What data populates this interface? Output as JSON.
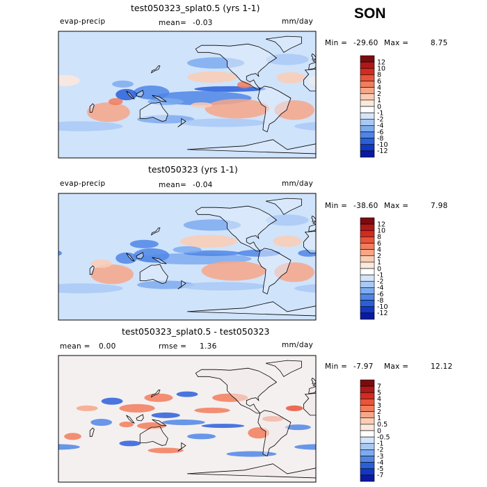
{
  "season": "SON",
  "colors": {
    "ocean_base": "#cfe3fb",
    "land": "#ffffff",
    "coast": "#000000"
  },
  "panels": [
    {
      "title": "test050323_splat0.5 (yrs 1-1)",
      "variable": "evap-precip",
      "mean_label": "mean=",
      "mean_value": "-0.03",
      "units": "mm/day",
      "min_label": "Min =",
      "min_value": "-29.60",
      "max_label": "Max =",
      "max_value": "8.75"
    },
    {
      "title": "test050323 (yrs 1-1)",
      "variable": "evap-precip",
      "mean_label": "mean=",
      "mean_value": "-0.04",
      "units": "mm/day",
      "min_label": "Min =",
      "min_value": "-38.60",
      "max_label": "Max =",
      "max_value": "7.98"
    },
    {
      "title": "test050323_splat0.5 - test050323",
      "mean_label": "mean =",
      "mean_value": "0.00",
      "rmse_label": "rmse =",
      "rmse_value": "1.36",
      "units": "mm/day",
      "min_label": "Min =",
      "min_value": "-7.97",
      "max_label": "Max =",
      "max_value": "12.12"
    }
  ],
  "chart_data": [
    {
      "type": "heatmap",
      "title": "test050323_splat0.5 (yrs 1-1)",
      "projection": "cylindrical-equidistant",
      "field": "evap-precip",
      "units": "mm/day",
      "mean": -0.03,
      "min": -29.6,
      "max": 8.75,
      "colorbar_levels": [
        "12",
        "10",
        "8",
        "6",
        "4",
        "2",
        "1",
        "0",
        "-1",
        "-2",
        "-4",
        "-6",
        "-8",
        "-10",
        "-12"
      ],
      "colorbar_colors": [
        "#7a0c10",
        "#b01818",
        "#d42a20",
        "#e8553a",
        "#f27d5c",
        "#f7a688",
        "#fbcdb4",
        "#fde8dc",
        "#ffffff",
        "#d4e5fb",
        "#a9c9f5",
        "#7eaaee",
        "#4f86e6",
        "#2a5fda",
        "#1337c2",
        "#0a1aa0"
      ]
    },
    {
      "type": "heatmap",
      "title": "test050323 (yrs 1-1)",
      "projection": "cylindrical-equidistant",
      "field": "evap-precip",
      "units": "mm/day",
      "mean": -0.04,
      "min": -38.6,
      "max": 7.98,
      "colorbar_levels": [
        "12",
        "10",
        "8",
        "6",
        "4",
        "2",
        "1",
        "0",
        "-1",
        "-2",
        "-4",
        "-6",
        "-8",
        "-10",
        "-12"
      ],
      "colorbar_colors": [
        "#7a0c10",
        "#b01818",
        "#d42a20",
        "#e8553a",
        "#f27d5c",
        "#f7a688",
        "#fbcdb4",
        "#fde8dc",
        "#ffffff",
        "#d4e5fb",
        "#a9c9f5",
        "#7eaaee",
        "#4f86e6",
        "#2a5fda",
        "#1337c2",
        "#0a1aa0"
      ]
    },
    {
      "type": "heatmap",
      "title": "test050323_splat0.5 - test050323",
      "projection": "cylindrical-equidistant",
      "units": "mm/day",
      "mean": 0.0,
      "rmse": 1.36,
      "min": -7.97,
      "max": 12.12,
      "colorbar_levels": [
        "7",
        "5",
        "4",
        "3",
        "2",
        "1",
        "0.5",
        "0",
        "-0.5",
        "-1",
        "-2",
        "-3",
        "-4",
        "-5",
        "-7"
      ],
      "colorbar_colors": [
        "#7a0c10",
        "#b01818",
        "#d42a20",
        "#e8553a",
        "#f27d5c",
        "#f7a688",
        "#fbcdb4",
        "#fde8dc",
        "#ffffff",
        "#d4e5fb",
        "#a9c9f5",
        "#7eaaee",
        "#4f86e6",
        "#2a5fda",
        "#1337c2",
        "#0a1aa0"
      ]
    }
  ]
}
